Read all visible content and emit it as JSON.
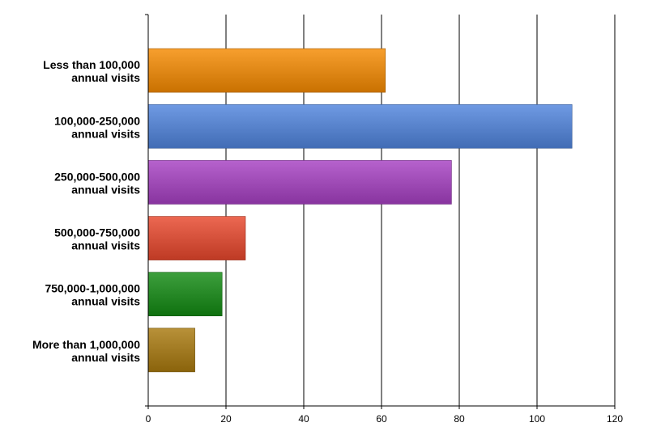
{
  "chart_data": {
    "type": "bar",
    "orientation": "horizontal",
    "categories": [
      [
        "Less than 100,000",
        "annual visits"
      ],
      [
        "100,000-250,000",
        "annual visits"
      ],
      [
        "250,000-500,000",
        "annual visits"
      ],
      [
        "500,000-750,000",
        "annual visits"
      ],
      [
        "750,000-1,000,000",
        "annual visits"
      ],
      [
        "More than 1,000,000",
        "annual visits"
      ]
    ],
    "values": [
      61,
      109,
      78,
      25,
      19,
      12
    ],
    "colors": [
      "#f58a00",
      "#4f84dd",
      "#a63fc2",
      "#e8472c",
      "#128a12",
      "#a8790e"
    ],
    "xlim": [
      0,
      120
    ],
    "xticks": [
      0,
      20,
      40,
      60,
      80,
      100,
      120
    ],
    "grid": "vertical",
    "title": "",
    "xlabel": "",
    "ylabel": ""
  }
}
